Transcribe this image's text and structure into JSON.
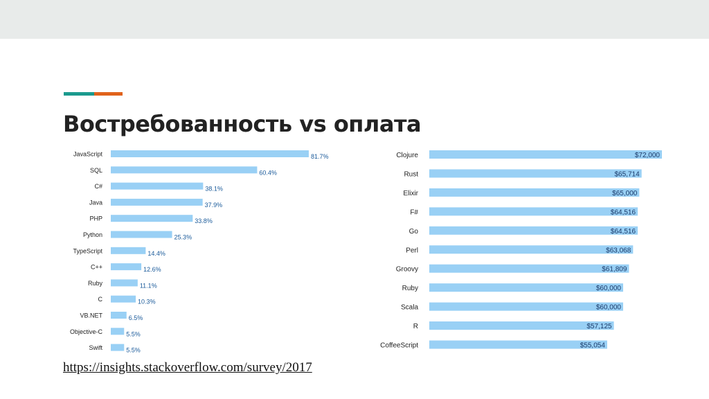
{
  "slide": {
    "title": "Востребованность vs оплата",
    "source_link": "https://insights.stackoverflow.com/survey/2017",
    "colors": {
      "topbar": "#e8ebea",
      "accent_teal": "#1a9a8e",
      "accent_orange": "#e0621b",
      "bar": "#99d0f5"
    }
  },
  "chart_data": [
    {
      "type": "bar",
      "orientation": "horizontal",
      "categories": [
        "JavaScript",
        "SQL",
        "C#",
        "Java",
        "PHP",
        "Python",
        "TypeScript",
        "C++",
        "Ruby",
        "C",
        "VB.NET",
        "Objective-C",
        "Swift"
      ],
      "values": [
        81.7,
        60.4,
        38.1,
        37.9,
        33.8,
        25.3,
        14.4,
        12.6,
        11.1,
        10.3,
        6.5,
        5.5,
        5.5
      ],
      "value_labels": [
        "81.7%",
        "60.4%",
        "38.1%",
        "37.9%",
        "33.8%",
        "25.3%",
        "14.4%",
        "12.6%",
        "11.1%",
        "10.3%",
        "6.5%",
        "5.5%",
        "5.5%"
      ],
      "label_position": "outside",
      "xlim": [
        0,
        100
      ],
      "grid": false,
      "title": "",
      "xlabel": "",
      "ylabel": ""
    },
    {
      "type": "bar",
      "orientation": "horizontal",
      "categories": [
        "Clojure",
        "Rust",
        "Elixir",
        "F#",
        "Go",
        "Perl",
        "Groovy",
        "Ruby",
        "Scala",
        "R",
        "CoffeeScript"
      ],
      "values": [
        72000,
        65714,
        65000,
        64516,
        64516,
        63068,
        61809,
        60000,
        60000,
        57125,
        55054
      ],
      "value_labels": [
        "$72,000",
        "$65,714",
        "$65,000",
        "$64,516",
        "$64,516",
        "$63,068",
        "$61,809",
        "$60,000",
        "$60,000",
        "$57,125",
        "$55,054"
      ],
      "label_position": "inside-end",
      "xlim": [
        0,
        72000
      ],
      "grid": false,
      "title": "",
      "xlabel": "",
      "ylabel": ""
    }
  ]
}
